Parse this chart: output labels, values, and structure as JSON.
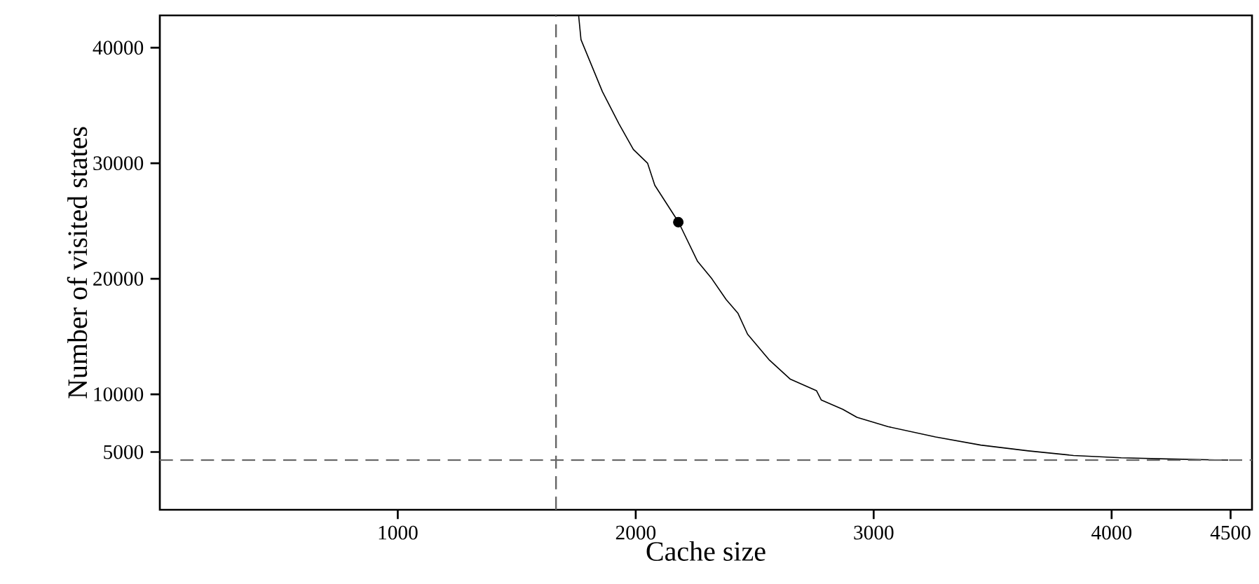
{
  "chart_data": {
    "type": "line",
    "xlabel": "Cache size",
    "ylabel": "Number of visited states",
    "xlim": [
      0,
      4590
    ],
    "ylim": [
      0,
      42800
    ],
    "xticks": [
      1000,
      2000,
      3000,
      4000,
      4500
    ],
    "yticks": [
      5000,
      10000,
      20000,
      30000,
      40000
    ],
    "grid": false,
    "series": [
      {
        "color": "#000000",
        "line_style": "solid",
        "x": [
          1760,
          1770,
          1860,
          1930,
          1990,
          2050,
          2080,
          2180,
          2260,
          2320,
          2380,
          2430,
          2470,
          2560,
          2650,
          2760,
          2780,
          2870,
          2930,
          3060,
          3260,
          3450,
          3650,
          3840,
          4040,
          4230,
          4470,
          4490
        ],
        "values": [
          42800,
          40700,
          36200,
          33400,
          31200,
          30000,
          28100,
          24900,
          21500,
          20000,
          18200,
          17000,
          15200,
          13000,
          11300,
          10300,
          9500,
          8700,
          8000,
          7200,
          6300,
          5600,
          5100,
          4700,
          4500,
          4400,
          4300,
          4300
        ]
      },
      {
        "type": "scatter",
        "color": "#000000",
        "marker": "circle",
        "x": [
          2179
        ],
        "values": [
          24900
        ]
      }
    ],
    "ref_lines": [
      {
        "axis": "x",
        "value": 1665,
        "color": "#666666",
        "line_style": "dashed"
      },
      {
        "axis": "y",
        "value": 4300,
        "color": "#666666",
        "line_style": "dashed"
      }
    ]
  }
}
